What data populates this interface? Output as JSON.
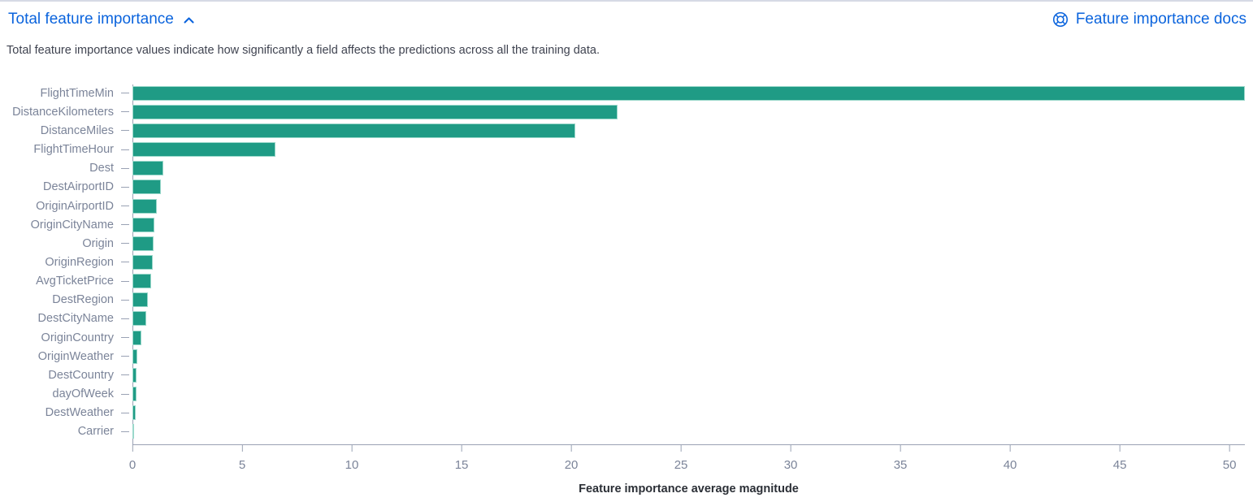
{
  "header": {
    "title": "Total feature importance",
    "collapse_icon": "chevron-up-icon"
  },
  "docs_link": {
    "label": "Feature importance docs",
    "icon": "help-icon"
  },
  "subtitle": "Total feature importance values indicate how significantly a field affects the predictions across all the training data.",
  "colors": {
    "accent_blue": "#0B64DD",
    "bar": "#1F9B85",
    "bar_edge": "#9BD8CB",
    "axis_label": "#7B8499",
    "axis_line": "#9AA2B4",
    "subtitle_text": "#3F4350",
    "axis_title_text": "#2B2F36",
    "top_border": "#D6DAE5"
  },
  "chart_data": {
    "type": "bar",
    "orientation": "horizontal",
    "title": "Total feature importance",
    "categories": [
      "FlightTimeMin",
      "DistanceKilometers",
      "DistanceMiles",
      "FlightTimeHour",
      "Dest",
      "DestAirportID",
      "OriginAirportID",
      "OriginCityName",
      "Origin",
      "OriginRegion",
      "AvgTicketPrice",
      "DestRegion",
      "DestCityName",
      "OriginCountry",
      "OriginWeather",
      "DestCountry",
      "dayOfWeek",
      "DestWeather",
      "Carrier"
    ],
    "values": [
      50.7,
      22.1,
      20.2,
      6.5,
      1.4,
      1.3,
      1.1,
      1.0,
      0.95,
      0.92,
      0.85,
      0.72,
      0.63,
      0.42,
      0.22,
      0.19,
      0.18,
      0.13,
      0.04
    ],
    "x_ticks": [
      0,
      5,
      10,
      15,
      20,
      25,
      30,
      35,
      40,
      45,
      50
    ],
    "xlim": [
      0,
      50.7
    ],
    "xlabel": "Feature importance average magnitude",
    "ylabel": "",
    "grid": false,
    "legend": false
  }
}
